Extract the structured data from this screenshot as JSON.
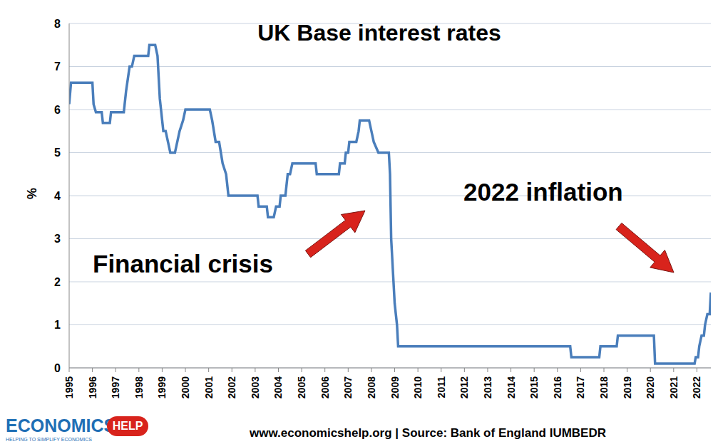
{
  "chart_data": {
    "type": "line",
    "title": "UK Base interest rates",
    "y_label": "%",
    "annotations": [
      "Financial crisis",
      "2022 inflation"
    ],
    "source": "www.economicshelp.org | Source: Bank of England IUMBEDR",
    "logo": {
      "name": "ECONOMICS",
      "badge": "HELP",
      "tagline": "HELPING TO SIMPLIFY ECONOMICS"
    },
    "x": [
      1995.0,
      1995.08,
      1996.0,
      1996.05,
      1996.15,
      1996.4,
      1996.45,
      1996.75,
      1996.8,
      1997.35,
      1997.45,
      1997.6,
      1997.7,
      1997.8,
      1998.4,
      1998.45,
      1998.7,
      1998.8,
      1998.9,
      1998.95,
      1999.05,
      1999.15,
      1999.25,
      1999.35,
      1999.55,
      1999.65,
      1999.75,
      1999.9,
      2000.0,
      2001.05,
      2001.15,
      2001.3,
      2001.45,
      2001.6,
      2001.75,
      2001.85,
      2003.1,
      2003.15,
      2003.5,
      2003.55,
      2003.8,
      2003.9,
      2004.05,
      2004.1,
      2004.3,
      2004.4,
      2004.5,
      2004.6,
      2005.6,
      2005.65,
      2006.6,
      2006.65,
      2006.85,
      2006.9,
      2007.0,
      2007.05,
      2007.35,
      2007.45,
      2007.5,
      2007.9,
      2008.0,
      2008.1,
      2008.3,
      2008.75,
      2008.8,
      2008.85,
      2008.95,
      2009.0,
      2009.1,
      2009.15,
      2016.55,
      2016.6,
      2017.8,
      2017.85,
      2018.55,
      2018.6,
      2020.15,
      2020.2,
      2021.9,
      2021.95,
      2022.05,
      2022.1,
      2022.2,
      2022.3,
      2022.35,
      2022.45,
      2022.55,
      2022.6
    ],
    "values": [
      6.125,
      6.625,
      6.625,
      6.125,
      5.94,
      5.94,
      5.69,
      5.69,
      5.94,
      5.94,
      6.44,
      7.0,
      7.0,
      7.25,
      7.25,
      7.5,
      7.5,
      7.25,
      6.25,
      6.0,
      5.5,
      5.5,
      5.25,
      5.0,
      5.0,
      5.25,
      5.5,
      5.75,
      6.0,
      6.0,
      5.75,
      5.25,
      5.25,
      4.75,
      4.5,
      4.0,
      4.0,
      3.75,
      3.75,
      3.5,
      3.5,
      3.75,
      3.75,
      4.0,
      4.0,
      4.5,
      4.5,
      4.75,
      4.75,
      4.5,
      4.5,
      4.75,
      4.75,
      5.0,
      5.0,
      5.25,
      5.25,
      5.5,
      5.75,
      5.75,
      5.5,
      5.25,
      5.0,
      5.0,
      4.5,
      3.0,
      2.0,
      1.5,
      1.0,
      0.5,
      0.5,
      0.25,
      0.25,
      0.5,
      0.5,
      0.75,
      0.75,
      0.1,
      0.1,
      0.25,
      0.25,
      0.5,
      0.75,
      0.75,
      1.0,
      1.25,
      1.25,
      1.75
    ],
    "color": "#4a7ebb",
    "xlim": [
      1995,
      2022.6
    ],
    "xticks": [
      1995,
      1996,
      1997,
      1998,
      1999,
      2000,
      2001,
      2002,
      2003,
      2004,
      2005,
      2006,
      2007,
      2008,
      2009,
      2010,
      2011,
      2012,
      2013,
      2014,
      2015,
      2016,
      2017,
      2018,
      2019,
      2020,
      2021,
      2022
    ],
    "ylim": [
      0,
      8
    ],
    "yticks": [
      0,
      1,
      2,
      3,
      4,
      5,
      6,
      7,
      8
    ],
    "grid": true
  }
}
